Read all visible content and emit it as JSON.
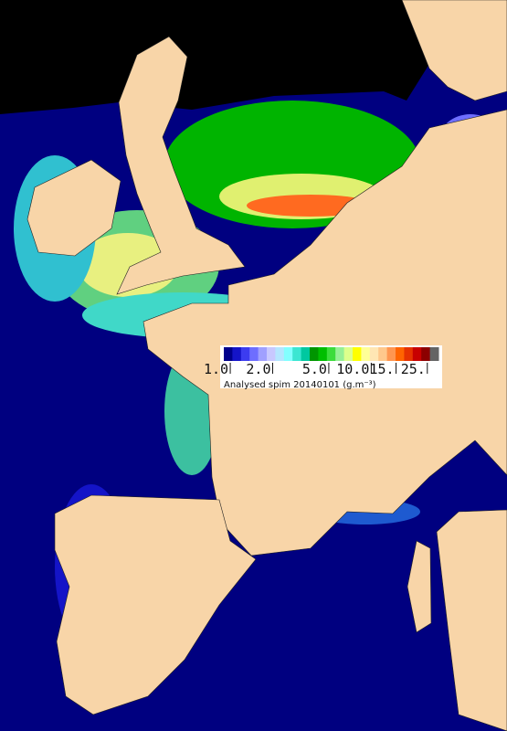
{
  "legend": {
    "colors": [
      "#00008b",
      "#1414c8",
      "#3c3cf0",
      "#6e6eff",
      "#a0a0ff",
      "#c8c8ff",
      "#b4e6ff",
      "#82ffff",
      "#3ce6d2",
      "#00c8a0",
      "#009600",
      "#00be00",
      "#3cdc3c",
      "#96f096",
      "#dcff8c",
      "#ffff00",
      "#ffff96",
      "#ffe6b4",
      "#ffc88c",
      "#ff9650",
      "#ff6400",
      "#e63200",
      "#c80000",
      "#8c0000",
      "#646464"
    ],
    "scale": "log",
    "range": [
      0.9,
      30
    ],
    "ticks": [
      {
        "value": 1,
        "label": "1.0"
      },
      {
        "value": 2,
        "label": "2.0"
      },
      {
        "value": 5,
        "label": "5.0"
      },
      {
        "value": 10,
        "label": "10.0"
      },
      {
        "value": 15,
        "label": "15."
      },
      {
        "value": 25,
        "label": "25."
      }
    ],
    "caption": "Analysed spim 20140101 (g.m⁻³)"
  }
}
